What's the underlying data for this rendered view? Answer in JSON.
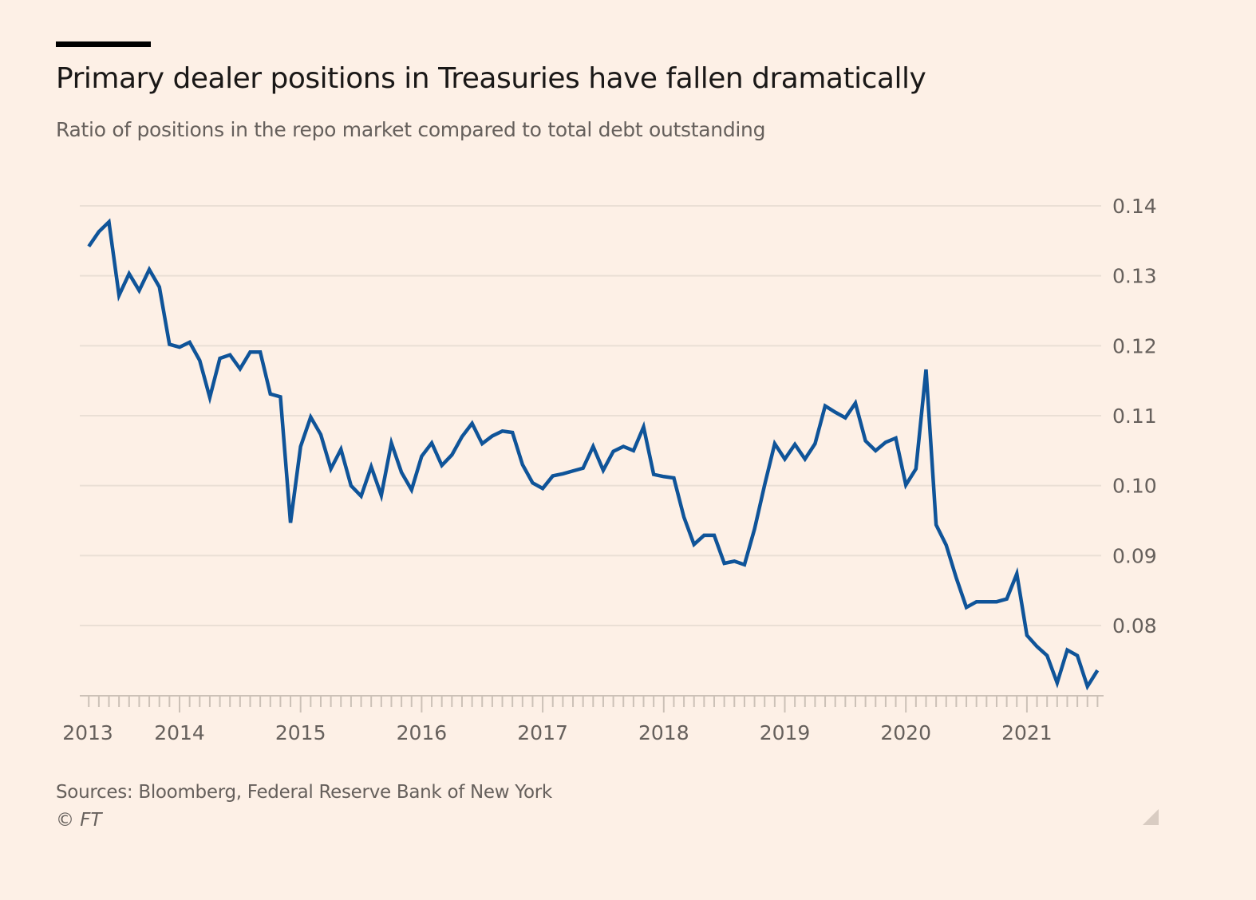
{
  "header": {
    "title": "Primary dealer positions in Treasuries have fallen dramatically",
    "subtitle": "Ratio of positions in the repo market compared to total debt outstanding"
  },
  "footer": {
    "source": "Sources: Bloomberg, Federal Reserve Bank of New York",
    "copyright": "© FT"
  },
  "colors": {
    "background": "#fdf0e6",
    "line": "#0f5499",
    "grid": "#eadfd5"
  },
  "chart_data": {
    "type": "line",
    "title": "Primary dealer positions in Treasuries have fallen dramatically",
    "subtitle": "Ratio of positions in the repo market compared to total debt outstanding",
    "xlabel": "",
    "ylabel": "",
    "x_start": "2013-04",
    "x_frequency": "monthly",
    "xlim": [
      2013.0,
      2021.7
    ],
    "ylim": [
      0.07,
      0.14
    ],
    "grid": true,
    "y_axis_side": "right",
    "yticks": [
      0.08,
      0.09,
      0.1,
      0.11,
      0.12,
      0.13,
      0.14
    ],
    "ytick_labels": [
      "0.08",
      "0.09",
      "0.10",
      "0.11",
      "0.12",
      "0.13",
      "0.14"
    ],
    "xticks": [
      2013,
      2014,
      2015,
      2016,
      2017,
      2018,
      2019,
      2020,
      2021
    ],
    "xtick_labels": [
      "2013",
      "2014",
      "2015",
      "2016",
      "2017",
      "2018",
      "2019",
      "2020",
      "2021"
    ],
    "series": [
      {
        "name": "Ratio",
        "values": [
          0.1342,
          0.1363,
          0.1377,
          0.1272,
          0.1303,
          0.1279,
          0.1309,
          0.1284,
          0.1202,
          0.1198,
          0.1205,
          0.1179,
          0.1126,
          0.1182,
          0.1187,
          0.1167,
          0.1191,
          0.1191,
          0.1131,
          0.1127,
          0.0947,
          0.1056,
          0.1098,
          0.1073,
          0.1024,
          0.1052,
          0.1,
          0.0985,
          0.1027,
          0.0986,
          0.1061,
          0.1019,
          0.0994,
          0.1042,
          0.1061,
          0.1029,
          0.1044,
          0.107,
          0.1089,
          0.106,
          0.1071,
          0.1078,
          0.1076,
          0.103,
          0.1004,
          0.0996,
          0.1014,
          0.1017,
          0.1021,
          0.1025,
          0.1056,
          0.1022,
          0.1049,
          0.1056,
          0.105,
          0.1084,
          0.1016,
          0.1013,
          0.1011,
          0.0955,
          0.0916,
          0.0929,
          0.0929,
          0.0889,
          0.0892,
          0.0887,
          0.0938,
          0.1001,
          0.106,
          0.1038,
          0.1059,
          0.1038,
          0.106,
          0.1114,
          0.1105,
          0.1097,
          0.1118,
          0.1064,
          0.105,
          0.1062,
          0.1068,
          0.1001,
          0.1024,
          0.1166,
          0.0944,
          0.0915,
          0.0868,
          0.0826,
          0.0834,
          0.0834,
          0.0834,
          0.0838,
          0.0874,
          0.0786,
          0.077,
          0.0757,
          0.0718,
          0.0765,
          0.0757,
          0.0713,
          0.0736
        ]
      }
    ]
  }
}
